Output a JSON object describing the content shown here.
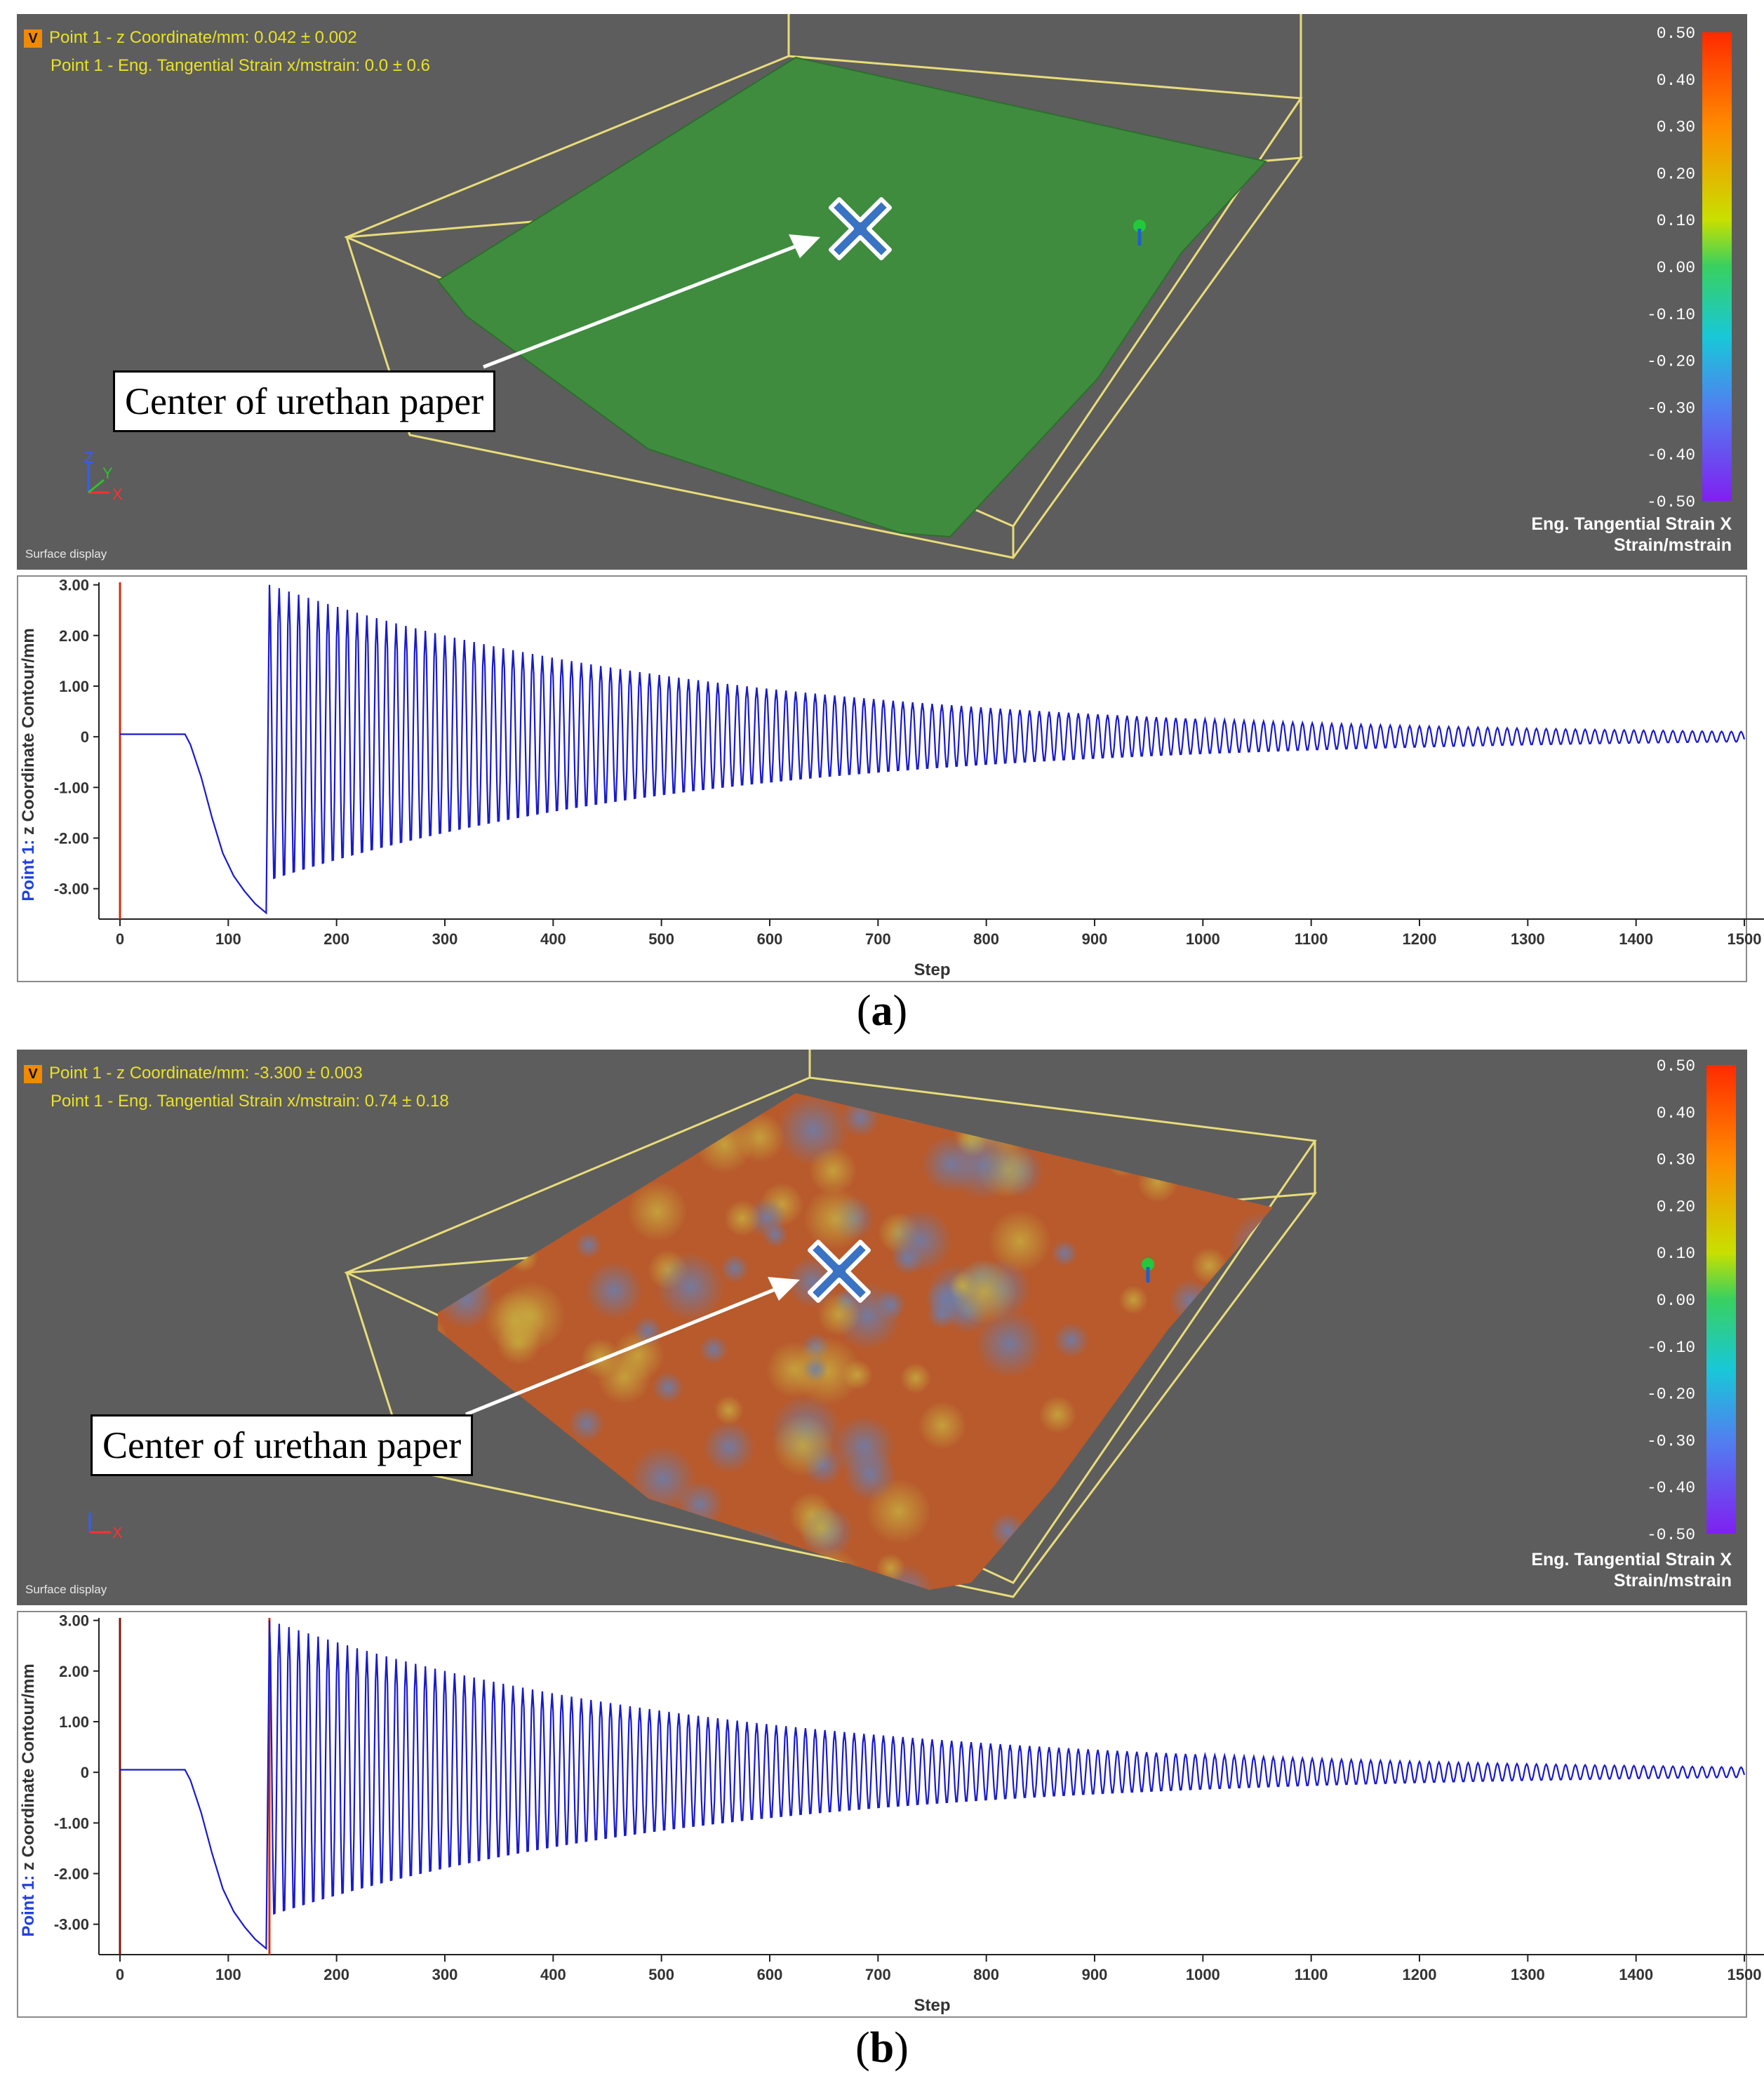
{
  "panels": [
    {
      "readout_line1": "Point 1 - z Coordinate/mm: 0.042 ± 0.002",
      "readout_line2": "Point 1 - Eng. Tangential Strain x/mstrain: 0.0 ± 0.6",
      "v_badge": "V",
      "callout": "Center of urethan paper",
      "surface_label": "Surface display",
      "colorbar_ticks": [
        "0.50",
        "0.40",
        "0.30",
        "0.20",
        "0.10",
        "0.00",
        "-0.10",
        "-0.20",
        "-0.30",
        "-0.40",
        "-0.50"
      ],
      "legend_line1": "Eng. Tangential Strain X",
      "legend_line2": "Strain/mstrain",
      "axis_labels": [
        "Z",
        "Y",
        "X"
      ],
      "surface_color": "#3f8c3f",
      "caption_open": "(",
      "caption_letter": "a",
      "caption_close": ")"
    },
    {
      "readout_line1": "Point 1 - z Coordinate/mm: -3.300 ± 0.003",
      "readout_line2": "Point 1 - Eng. Tangential Strain x/mstrain: 0.74 ± 0.18",
      "v_badge": "V",
      "callout": "Center of urethan paper",
      "surface_label": "Surface display",
      "colorbar_ticks": [
        "0.50",
        "0.40",
        "0.30",
        "0.20",
        "0.10",
        "0.00",
        "-0.10",
        "-0.20",
        "-0.30",
        "-0.40",
        "-0.50"
      ],
      "legend_line1": "Eng. Tangential Strain X",
      "legend_line2": "Strain/mstrain",
      "axis_labels": [
        "Z",
        "Y",
        "X"
      ],
      "surface_color": "#b05a2a",
      "caption_open": "(",
      "caption_letter": "b",
      "caption_close": ")"
    }
  ],
  "chart_data": [
    {
      "type": "line",
      "xlabel": "Step",
      "ylabel_prefix": "Point 1:",
      "ylabel": "z Coordinate Contour/mm",
      "xlim": [
        0,
        1500
      ],
      "ylim": [
        -3.6,
        3.05
      ],
      "x_ticks": [
        "0",
        "100",
        "200",
        "300",
        "400",
        "500",
        "600",
        "700",
        "800",
        "900",
        "1000",
        "1100",
        "1200",
        "1300",
        "1400",
        "1500"
      ],
      "y_ticks": [
        "3.00",
        "2.00",
        "1.00",
        "0",
        "-1.00",
        "-2.00",
        "-3.00"
      ],
      "cursor_steps": [
        0
      ],
      "series": [
        {
          "color": "#1a1acc",
          "baseline_until": 60,
          "descent": [
            [
              60,
              0.05
            ],
            [
              65,
              -0.15
            ],
            [
              75,
              -0.8
            ],
            [
              85,
              -1.6
            ],
            [
              95,
              -2.3
            ],
            [
              105,
              -2.75
            ],
            [
              115,
              -3.05
            ],
            [
              125,
              -3.3
            ],
            [
              135,
              -3.48
            ]
          ],
          "oscillation_start": 138,
          "initial_amplitude": 3.0,
          "final_amplitude": 0.1,
          "end_step": 1500,
          "period_steps": 9
        }
      ]
    },
    {
      "type": "line",
      "xlabel": "Step",
      "ylabel_prefix": "Point 1:",
      "ylabel": "z Coordinate Contour/mm",
      "xlim": [
        0,
        1500
      ],
      "ylim": [
        -3.6,
        3.05
      ],
      "x_ticks": [
        "0",
        "100",
        "200",
        "300",
        "400",
        "500",
        "600",
        "700",
        "800",
        "900",
        "1000",
        "1100",
        "1200",
        "1300",
        "1400",
        "1500"
      ],
      "y_ticks": [
        "3.00",
        "2.00",
        "1.00",
        "0",
        "-1.00",
        "-2.00",
        "-3.00"
      ],
      "cursor_steps": [
        0,
        138
      ],
      "series": [
        {
          "color": "#1a1acc",
          "baseline_until": 60,
          "descent": [
            [
              60,
              0.05
            ],
            [
              65,
              -0.15
            ],
            [
              75,
              -0.8
            ],
            [
              85,
              -1.6
            ],
            [
              95,
              -2.3
            ],
            [
              105,
              -2.75
            ],
            [
              115,
              -3.05
            ],
            [
              125,
              -3.3
            ],
            [
              135,
              -3.48
            ]
          ],
          "oscillation_start": 138,
          "initial_amplitude": 3.0,
          "final_amplitude": 0.1,
          "end_step": 1500,
          "period_steps": 9
        }
      ]
    }
  ]
}
